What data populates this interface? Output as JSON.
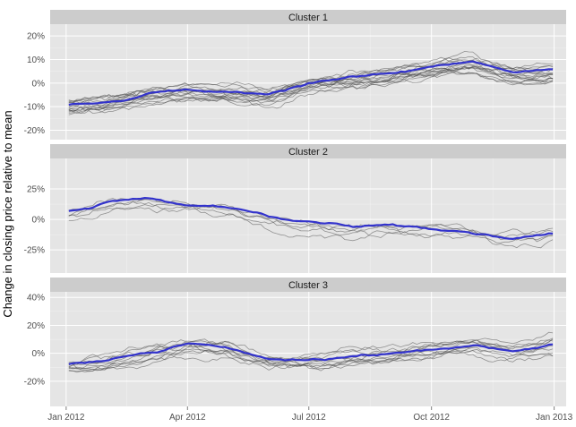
{
  "chart_data": {
    "type": "line",
    "ylabel": "Change in closing price relative to mean",
    "x_tick_labels": [
      "Jan 2012",
      "Apr 2012",
      "Jul 2012",
      "Oct 2012",
      "Jan 2013"
    ],
    "x_ticks": [
      "2012-01-01",
      "2012-04-01",
      "2012-07-01",
      "2012-10-01",
      "2013-01-01"
    ],
    "xlim": [
      "2011-12-20",
      "2013-01-10"
    ],
    "grid": true,
    "colors": {
      "panel": "#e5e5e5",
      "strip": "#cccccc",
      "grid": "#ffffff",
      "member": "#4d4d4d",
      "mean": "#3333cc"
    },
    "panels": [
      {
        "strip": "Cluster 1",
        "ylim": [
          -24,
          25
        ],
        "y_ticks": [
          -20,
          -10,
          0,
          10,
          20
        ],
        "y_tick_labels": [
          "-20%",
          "-10%",
          "0%",
          "10%",
          "20%"
        ],
        "mean_series": {
          "x": [
            "2012-01-03",
            "2012-02-01",
            "2012-03-01",
            "2012-04-01",
            "2012-05-01",
            "2012-06-01",
            "2012-07-01",
            "2012-08-01",
            "2012-09-01",
            "2012-10-01",
            "2012-11-01",
            "2012-12-01",
            "2012-12-31"
          ],
          "y": [
            -9,
            -8,
            -5,
            -3,
            -4,
            -5,
            0,
            2,
            4,
            7,
            9,
            5,
            5
          ]
        }
      },
      {
        "strip": "Cluster 2",
        "ylim": [
          -44,
          50
        ],
        "y_ticks": [
          -25,
          0,
          25
        ],
        "y_tick_labels": [
          "-25%",
          "0%",
          "25%"
        ],
        "mean_series": {
          "x": [
            "2012-01-03",
            "2012-02-01",
            "2012-03-01",
            "2012-04-01",
            "2012-05-01",
            "2012-06-01",
            "2012-07-01",
            "2012-08-01",
            "2012-09-01",
            "2012-10-01",
            "2012-11-01",
            "2012-12-01",
            "2012-12-31"
          ],
          "y": [
            7,
            14,
            18,
            12,
            10,
            2,
            -2,
            -6,
            -5,
            -8,
            -11,
            -14,
            -12
          ]
        }
      },
      {
        "strip": "Cluster 3",
        "ylim": [
          -38,
          44
        ],
        "y_ticks": [
          -20,
          0,
          20,
          40
        ],
        "y_tick_labels": [
          "-20%",
          "0%",
          "20%",
          "40%"
        ],
        "mean_series": {
          "x": [
            "2012-01-03",
            "2012-02-01",
            "2012-03-01",
            "2012-04-01",
            "2012-05-01",
            "2012-06-01",
            "2012-07-01",
            "2012-08-01",
            "2012-09-01",
            "2012-10-01",
            "2012-11-01",
            "2012-12-01",
            "2012-12-31"
          ],
          "y": [
            -8,
            -5,
            0,
            7,
            5,
            -5,
            -5,
            -2,
            0,
            2,
            5,
            2,
            5
          ]
        }
      }
    ]
  }
}
